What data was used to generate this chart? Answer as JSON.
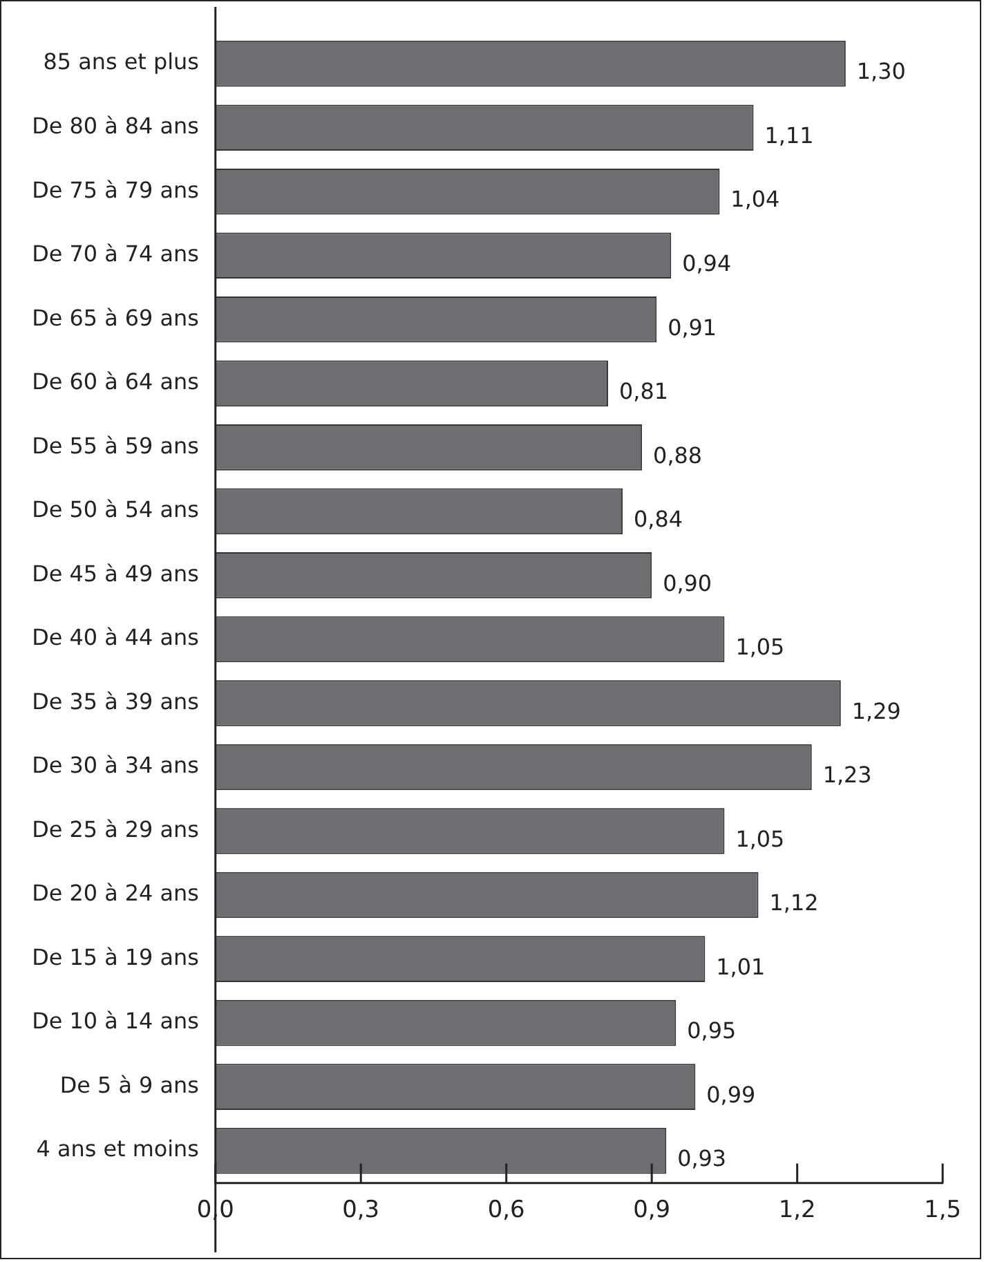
{
  "chart_data": {
    "type": "bar",
    "orientation": "horizontal",
    "categories": [
      "85 ans et plus",
      "De 80 à 84 ans",
      "De 75 à 79 ans",
      "De 70 à 74 ans",
      "De 65 à 69 ans",
      "De 60 à 64 ans",
      "De 55 à 59 ans",
      "De 50 à 54 ans",
      "De 45 à 49 ans",
      "De 40 à 44 ans",
      "De 35 à 39 ans",
      "De 30 à 34 ans",
      "De 25 à 29 ans",
      "De 20 à 24 ans",
      "De 15 à 19 ans",
      "De 10 à 14 ans",
      "De 5 à 9 ans",
      "4 ans et moins"
    ],
    "values": [
      1.3,
      1.11,
      1.04,
      0.94,
      0.91,
      0.81,
      0.88,
      0.84,
      0.9,
      1.05,
      1.29,
      1.23,
      1.05,
      1.12,
      1.01,
      0.95,
      0.99,
      0.93
    ],
    "value_labels": [
      "1,30",
      "1,11",
      "1,04",
      "0,94",
      "0,91",
      "0,81",
      "0,88",
      "0,84",
      "0,90",
      "1,05",
      "1,29",
      "1,23",
      "1,05",
      "1,12",
      "1,01",
      "0,95",
      "0,99",
      "0,93"
    ],
    "color": "#6d6e71",
    "xlim": [
      0,
      1.5
    ],
    "xticks": [
      {
        "value": 0,
        "label": "0,0"
      },
      {
        "value": 0.3,
        "label": "0,3"
      },
      {
        "value": 0.6,
        "label": "0,6"
      },
      {
        "value": 0.9,
        "label": "0,9"
      },
      {
        "value": 1.2,
        "label": "1,2"
      },
      {
        "value": 1.5,
        "label": "1,5"
      }
    ],
    "grid": false,
    "legend": false
  }
}
